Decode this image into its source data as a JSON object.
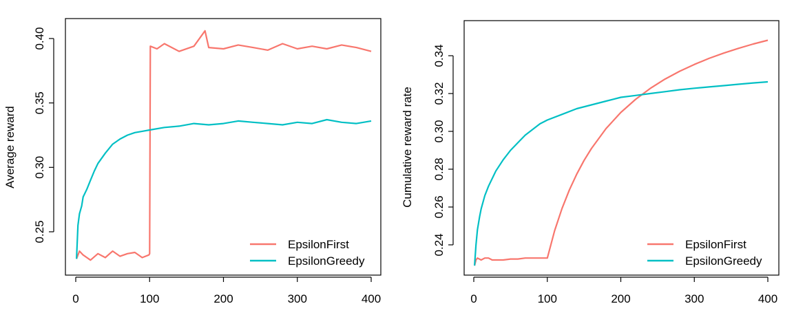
{
  "chart_data": [
    {
      "type": "line",
      "xlabel": "",
      "ylabel": "Average reward",
      "xlim": [
        0,
        400
      ],
      "ylim": [
        0.215,
        0.41
      ],
      "xticks": [
        "0",
        "100",
        "200",
        "300",
        "400"
      ],
      "yticks": [
        "0.25",
        "0.30",
        "0.35",
        "0.40"
      ],
      "legend_position": "bottom-right",
      "series": [
        {
          "name": "EpsilonFirst",
          "color": "#F8766D",
          "x": [
            1,
            5,
            10,
            20,
            30,
            40,
            50,
            60,
            70,
            80,
            90,
            99,
            100,
            101,
            110,
            120,
            140,
            160,
            175,
            180,
            200,
            220,
            240,
            260,
            280,
            300,
            320,
            340,
            360,
            380,
            400
          ],
          "y": [
            0.229,
            0.235,
            0.232,
            0.228,
            0.233,
            0.23,
            0.235,
            0.231,
            0.233,
            0.234,
            0.23,
            0.232,
            0.233,
            0.394,
            0.392,
            0.396,
            0.39,
            0.394,
            0.406,
            0.393,
            0.392,
            0.395,
            0.393,
            0.391,
            0.396,
            0.392,
            0.394,
            0.392,
            0.395,
            0.393,
            0.39
          ]
        },
        {
          "name": "EpsilonGreedy",
          "color": "#00BFC4",
          "x": [
            1,
            3,
            5,
            8,
            10,
            15,
            20,
            25,
            30,
            40,
            50,
            60,
            70,
            80,
            90,
            100,
            120,
            140,
            160,
            180,
            200,
            220,
            240,
            260,
            280,
            300,
            320,
            340,
            360,
            380,
            400
          ],
          "y": [
            0.229,
            0.255,
            0.264,
            0.27,
            0.277,
            0.283,
            0.29,
            0.297,
            0.303,
            0.311,
            0.318,
            0.322,
            0.325,
            0.327,
            0.328,
            0.329,
            0.331,
            0.332,
            0.334,
            0.333,
            0.334,
            0.336,
            0.335,
            0.334,
            0.333,
            0.335,
            0.334,
            0.337,
            0.335,
            0.334,
            0.336
          ]
        }
      ]
    },
    {
      "type": "line",
      "xlabel": "",
      "ylabel": "Cumulative reward rate",
      "xlim": [
        0,
        400
      ],
      "ylim": [
        0.226,
        0.355
      ],
      "xticks": [
        "0",
        "100",
        "200",
        "300",
        "400"
      ],
      "yticks": [
        "0.24",
        "0.26",
        "0.28",
        "0.30",
        "0.32",
        "0.34"
      ],
      "legend_position": "bottom-right",
      "series": [
        {
          "name": "EpsilonFirst",
          "color": "#F8766D",
          "x": [
            1,
            3,
            5,
            10,
            15,
            20,
            25,
            30,
            40,
            50,
            60,
            70,
            80,
            90,
            100,
            110,
            120,
            130,
            140,
            150,
            160,
            180,
            200,
            220,
            240,
            260,
            280,
            300,
            320,
            340,
            360,
            380,
            400
          ],
          "y": [
            0.229,
            0.232,
            0.233,
            0.232,
            0.233,
            0.233,
            0.232,
            0.232,
            0.232,
            0.2325,
            0.2325,
            0.233,
            0.233,
            0.233,
            0.233,
            0.2475,
            0.2592,
            0.269,
            0.2774,
            0.2846,
            0.2909,
            0.3015,
            0.31,
            0.3169,
            0.3227,
            0.3276,
            0.3318,
            0.3354,
            0.3386,
            0.3414,
            0.3439,
            0.3462,
            0.3482
          ]
        },
        {
          "name": "EpsilonGreedy",
          "color": "#00BFC4",
          "x": [
            1,
            3,
            5,
            8,
            10,
            15,
            20,
            30,
            40,
            50,
            60,
            70,
            80,
            90,
            100,
            120,
            140,
            160,
            180,
            200,
            220,
            240,
            260,
            280,
            300,
            320,
            340,
            360,
            380,
            400
          ],
          "y": [
            0.229,
            0.24,
            0.248,
            0.255,
            0.259,
            0.266,
            0.271,
            0.279,
            0.285,
            0.29,
            0.294,
            0.298,
            0.301,
            0.304,
            0.306,
            0.309,
            0.312,
            0.314,
            0.316,
            0.318,
            0.319,
            0.32,
            0.321,
            0.322,
            0.3228,
            0.3235,
            0.3242,
            0.3249,
            0.3256,
            0.3262
          ]
        }
      ]
    }
  ]
}
